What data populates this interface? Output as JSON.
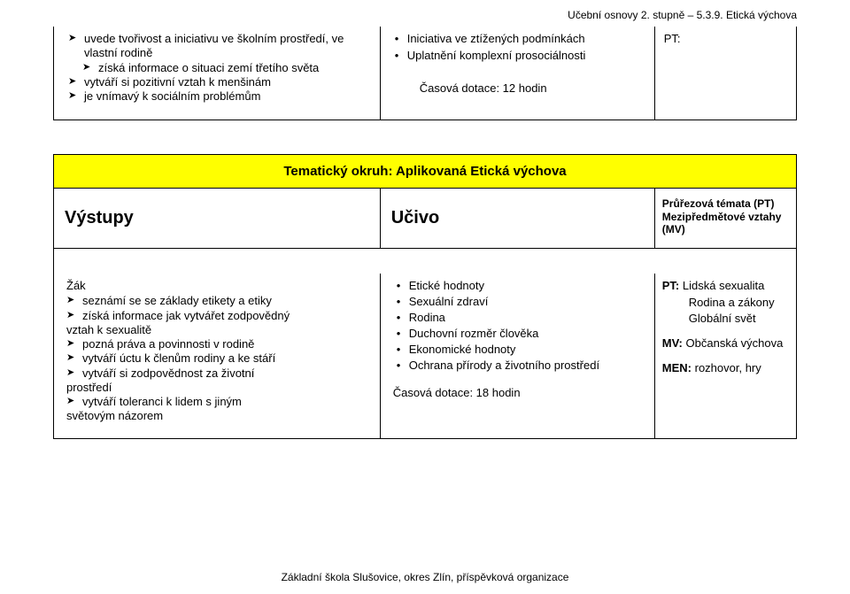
{
  "header": "Učební osnovy 2. stupně – 5.3.9. Etická výchova",
  "top": {
    "col1": [
      {
        "text": "uvede tvořivost a iniciativu ve školním prostředí, ve vlastní rodině",
        "nested": false
      },
      {
        "text": "získá informace o situaci zemí třetího světa",
        "nested": true
      },
      {
        "text": "vytváří si pozitivní vztah k menšinám",
        "nested": false
      },
      {
        "text": "je vnímavý k sociálním problémům",
        "nested": false
      }
    ],
    "col2": {
      "items": [
        "Iniciativa ve ztížených podmínkách",
        "Uplatnění komplexní prosociálnosti"
      ],
      "time": "Časová dotace: 12 hodin"
    },
    "col3": "PT:"
  },
  "section": {
    "title": "Tematický okruh:  Aplikovaná Etická výchova",
    "h1": "Výstupy",
    "h2": "Učivo",
    "h3": "Průřezová témata (PT) Mezipředmětové vztahy (MV)"
  },
  "body": {
    "lead": "Žák",
    "col1": [
      "seznámí se se základy etikety a etiky",
      "získá informace jak vytvářet zodpovědný",
      "__cont__vztah k sexualitě",
      "pozná práva a povinnosti v rodině",
      "vytváří úctu k členům rodiny a ke stáří",
      "vytváří si zodpovědnost za životní",
      "__cont__prostředí",
      "vytváří toleranci k lidem s jiným",
      "__cont__světovým názorem"
    ],
    "col2": {
      "items": [
        "Etické hodnoty",
        "Sexuální zdraví",
        "Rodina",
        "Duchovní rozměr člověka",
        "Ekonomické hodnoty",
        "Ochrana přírody a životního prostředí"
      ],
      "time": "Časová dotace: 18 hodin"
    },
    "col3": {
      "l1a": "PT:",
      "l1b": "Lidská sexualita",
      "l2": "Rodina a zákony",
      "l3": "Globální svět",
      "l4a": "MV:",
      "l4b": "Občanská výchova",
      "l5a": "MEN:",
      "l5b": "rozhovor, hry"
    }
  },
  "footer": "Základní škola Slušovice, okres Zlín, příspěvková organizace",
  "colors": {
    "highlight": "#ffff00",
    "border": "#000000",
    "background": "#ffffff"
  }
}
